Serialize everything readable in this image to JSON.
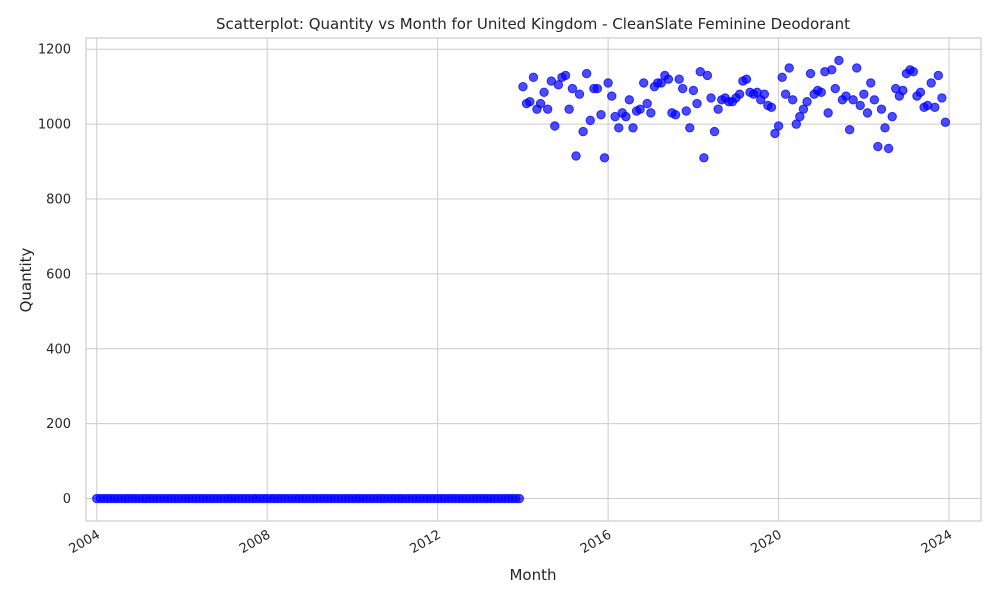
{
  "chart_data": {
    "type": "scatter",
    "title": "Scatterplot: Quantity vs Month for United Kingdom - CleanSlate Feminine Deodorant",
    "xlabel": "Month",
    "ylabel": "Quantity",
    "xlim": [
      "2003-10-01",
      "2024-10-01"
    ],
    "ylim": [
      -60,
      1230
    ],
    "x_ticks": [
      "2004",
      "2008",
      "2012",
      "2016",
      "2020",
      "2024"
    ],
    "y_ticks": [
      "0",
      "200",
      "400",
      "600",
      "800",
      "1000",
      "1200"
    ],
    "y_tick_values": [
      0,
      200,
      400,
      600,
      800,
      1000,
      1200
    ],
    "grid": true,
    "marker_color": "#0000ff",
    "series": [
      {
        "zero_months": {
          "start": "2004-01",
          "end": "2013-12",
          "value": 0
        },
        "x_start": "2014-01",
        "y": [
          1100,
          1055,
          1060,
          1125,
          1040,
          1055,
          1085,
          1040,
          1115,
          995,
          1105,
          1125,
          1130,
          1040,
          1095,
          915,
          1080,
          980,
          1135,
          1010,
          1095,
          1095,
          1025,
          910,
          1110,
          1075,
          1020,
          990,
          1030,
          1020,
          1065,
          990,
          1035,
          1040,
          1110,
          1055,
          1030,
          1100,
          1110,
          1110,
          1130,
          1120,
          1030,
          1025,
          1120,
          1095,
          1035,
          990,
          1090,
          1055,
          1140,
          910,
          1130,
          1070,
          980,
          1040,
          1065,
          1070,
          1060,
          1060,
          1070,
          1080,
          1115,
          1120,
          1085,
          1080,
          1085,
          1065,
          1080,
          1050,
          1045,
          975,
          995,
          1125,
          1080,
          1150,
          1065,
          1000,
          1020,
          1040,
          1060,
          1135,
          1080,
          1090,
          1085,
          1140,
          1030,
          1145,
          1095,
          1170,
          1065,
          1075,
          985,
          1065,
          1150,
          1050,
          1080,
          1030,
          1110,
          1065,
          940,
          1040,
          990,
          935,
          1020,
          1095,
          1075,
          1090,
          1135,
          1145,
          1140,
          1075,
          1085,
          1045,
          1050,
          1110,
          1045,
          1130,
          1070,
          1005
        ]
      }
    ]
  }
}
